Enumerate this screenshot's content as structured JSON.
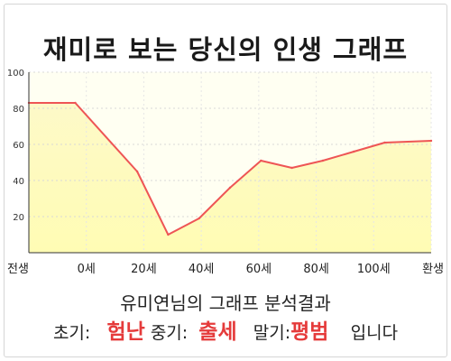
{
  "title": "재미로 보는 당신의 인생 그래프",
  "summary": {
    "heading": "유미연님의 그래프 분석결과",
    "early_label": "초기:",
    "early_value": "험난",
    "mid_label": "중기:",
    "mid_value": "출세",
    "late_label": "말기:",
    "late_value": "평범",
    "suffix": "입니다"
  },
  "colors": {
    "line": "#ee5555",
    "fill_top": "#fdf9c8",
    "fill_bottom": "#fffcb4",
    "plot_bg": "#fffff2",
    "accent_text": "#e53b3b"
  },
  "chart_data": {
    "type": "area",
    "title": "재미로 보는 당신의 인생 그래프",
    "xlabel": "",
    "ylabel": "",
    "x_tick_labels": [
      "전생",
      "0세",
      "20세",
      "40세",
      "60세",
      "80세",
      "100세",
      "환생"
    ],
    "x": [
      -15,
      0,
      20,
      30,
      40,
      50,
      60,
      70,
      80,
      90,
      100,
      115
    ],
    "values": [
      83,
      83,
      45,
      10,
      19,
      36,
      51,
      47,
      51,
      56,
      61,
      62
    ],
    "ylim": [
      0,
      100
    ],
    "yticks": [
      20,
      40,
      60,
      80,
      100
    ],
    "grid": true
  }
}
